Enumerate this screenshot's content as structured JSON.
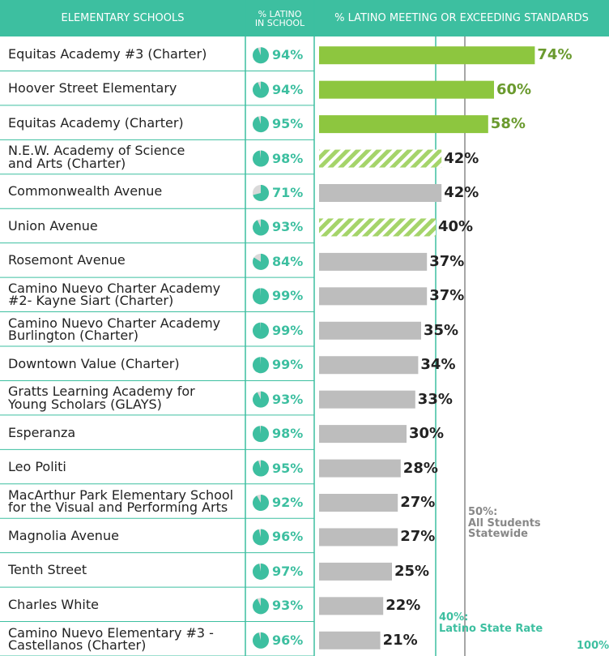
{
  "chart_data": {
    "type": "bar",
    "headers": [
      "ELEMENTARY SCHOOLS",
      "% LATINO\nIN SCHOOL",
      "% LATINO MEETING OR EXCEEDING STANDARDS"
    ],
    "categories": [
      "Equitas Academy #3 (Charter)",
      "Hoover Street Elementary",
      "Equitas Academy (Charter)",
      "N.E.W. Academy of Science\nand Arts (Charter)",
      "Commonwealth Avenue",
      "Union Avenue",
      "Rosemont Avenue",
      "Camino Nuevo Charter Academy\n#2- Kayne Siart (Charter)",
      "Camino Nuevo Charter Academy\nBurlington (Charter)",
      "Downtown Value (Charter)",
      "Gratts Learning Academy for\nYoung Scholars (GLAYS)",
      "Esperanza",
      "Leo Politi",
      "MacArthur Park Elementary School\nfor the Visual and Performing Arts",
      "Magnolia Avenue",
      "Tenth Street",
      "Charles White",
      "Camino Nuevo Elementary #3 -\nCastellanos (Charter)"
    ],
    "series": [
      {
        "name": "% LATINO IN SCHOOL",
        "color": "#3dbfa0",
        "values": [
          94,
          94,
          95,
          98,
          71,
          93,
          84,
          99,
          99,
          99,
          93,
          98,
          95,
          92,
          96,
          97,
          93,
          96
        ],
        "value_labels": [
          "94%",
          "94%",
          "95%",
          "98%",
          "71%",
          "93%",
          "84%",
          "99%",
          "99%",
          "99%",
          "93%",
          "98%",
          "95%",
          "92%",
          "96%",
          "97%",
          "93%",
          "96%"
        ]
      },
      {
        "name": "% LATINO MEETING OR EXCEEDING STANDARDS",
        "values": [
          74,
          60,
          58,
          42,
          42,
          40,
          37,
          37,
          35,
          34,
          33,
          30,
          28,
          27,
          27,
          25,
          22,
          21
        ],
        "value_labels": [
          "74%",
          "60%",
          "58%",
          "42%",
          "42%",
          "40%",
          "37%",
          "37%",
          "35%",
          "34%",
          "33%",
          "30%",
          "28%",
          "27%",
          "27%",
          "25%",
          "22%",
          "21%"
        ],
        "colors": [
          "#8dc63f",
          "#8dc63f",
          "#8dc63f",
          "#a5d46a",
          "#bdbdbd",
          "#a5d46a",
          "#bdbdbd",
          "#bdbdbd",
          "#bdbdbd",
          "#bdbdbd",
          "#bdbdbd",
          "#bdbdbd",
          "#bdbdbd",
          "#bdbdbd",
          "#bdbdbd",
          "#bdbdbd",
          "#bdbdbd",
          "#bdbdbd"
        ],
        "hatched": [
          false,
          false,
          false,
          true,
          false,
          true,
          false,
          false,
          false,
          false,
          false,
          false,
          false,
          false,
          false,
          false,
          false,
          false
        ],
        "label_colors": [
          "#6a9a2e",
          "#6a9a2e",
          "#6a9a2e",
          "#222",
          "#222",
          "#222",
          "#222",
          "#222",
          "#222",
          "#222",
          "#222",
          "#222",
          "#222",
          "#222",
          "#222",
          "#222",
          "#222",
          "#222"
        ]
      }
    ],
    "xlim": [
      0,
      100
    ],
    "xticks": [
      {
        "value": 100,
        "label": "100%"
      }
    ],
    "reference_lines": [
      {
        "value": 50,
        "label": "50%:\nAll Students\nStatewide",
        "color": "#888888"
      },
      {
        "value": 40,
        "label": "40%:\nLatino State Rate",
        "color": "#3dbfa0"
      }
    ]
  }
}
